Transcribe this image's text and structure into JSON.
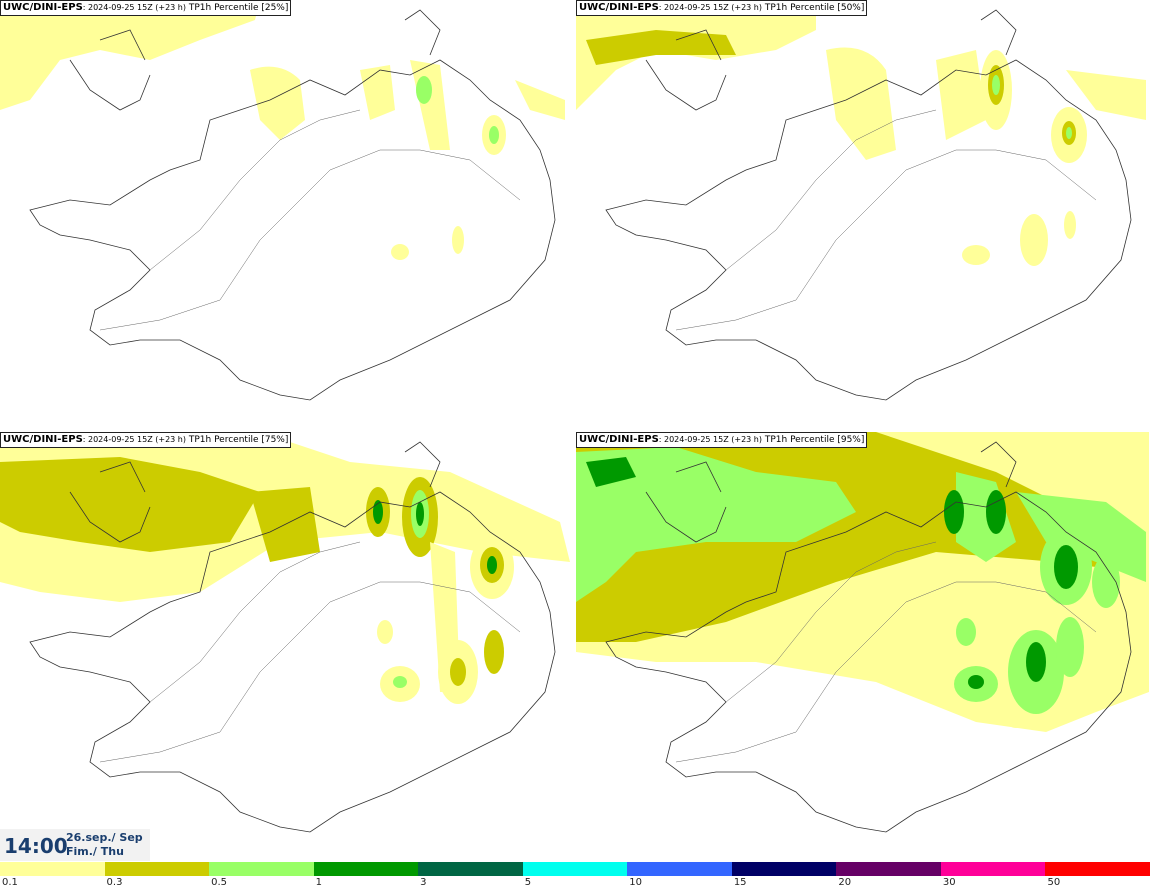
{
  "panels": [
    {
      "model": "UWC/DINI-EPS",
      "meta": ": 2024-09-25 15Z (+23 h)",
      "title": "TP1h Percentile [25%]"
    },
    {
      "model": "UWC/DINI-EPS",
      "meta": ": 2024-09-25 15Z (+23 h)",
      "title": "TP1h Percentile [50%]"
    },
    {
      "model": "UWC/DINI-EPS",
      "meta": ": 2024-09-25 15Z (+23 h)",
      "title": "TP1h Percentile [75%]"
    },
    {
      "model": "UWC/DINI-EPS",
      "meta": ": 2024-09-25 15Z (+23 h)",
      "title": "TP1h Percentile [95%]"
    }
  ],
  "valid_time": {
    "time": "14:00",
    "date_line1": "26.sep./ Sep",
    "date_line2": "Fim./ Thu"
  },
  "colorscale": {
    "colors": [
      "#ffff99",
      "#cccc00",
      "#99ff66",
      "#009900",
      "#006644",
      "#00ffee",
      "#3366ff",
      "#000066",
      "#660066",
      "#ff0099",
      "#ff0000"
    ],
    "labels": [
      "0.1",
      "0.3",
      "0.5",
      "1",
      "3",
      "5",
      "10",
      "15",
      "20",
      "30",
      "50"
    ]
  }
}
